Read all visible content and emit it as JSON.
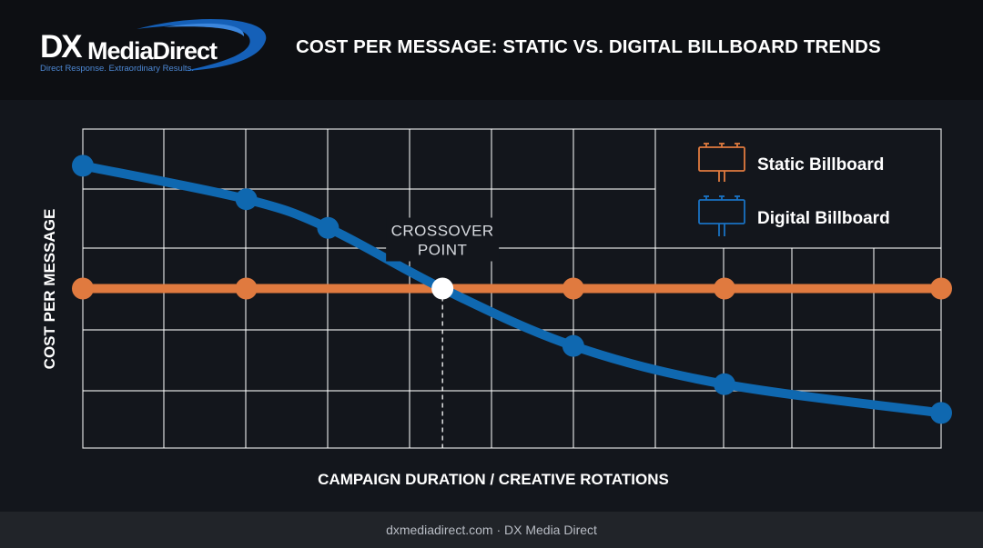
{
  "header": {
    "logo_dx": "DX",
    "logo_name": "MediaDirect",
    "logo_tagline": "Direct Response. Extraordinary Results."
  },
  "colors": {
    "static": "#e07a3f",
    "digital": "#0f68b0",
    "grid": "#ffffff",
    "background": "#13161c"
  },
  "chart_data": {
    "type": "line",
    "title": "COST PER MESSAGE: STATIC VS. DIGITAL BILLBOARD TRENDS",
    "xlabel": "CAMPAIGN DURATION / CREATIVE ROTATIONS",
    "ylabel": "COST PER MESSAGE",
    "xlim": [
      0,
      10.5
    ],
    "ylim": [
      0,
      10
    ],
    "grid": true,
    "ticks_labeled": false,
    "legend_position": "top-right",
    "series": [
      {
        "name": "Static Billboard",
        "color": "#e07a3f",
        "icon": "static-billboard-icon",
        "x": [
          0,
          2,
          6,
          7.85,
          10.5
        ],
        "y": [
          5,
          5,
          5,
          5,
          5
        ]
      },
      {
        "name": "Digital Billboard",
        "color": "#0f68b0",
        "icon": "digital-billboard-icon",
        "x": [
          0,
          2,
          3,
          4.4,
          6,
          7.85,
          10.5
        ],
        "y": [
          8.85,
          7.8,
          6.9,
          5,
          3.2,
          2,
          1.1
        ]
      }
    ],
    "annotations": [
      {
        "text": "CROSSOVER POINT",
        "lines": [
          "CROSSOVER",
          "POINT"
        ],
        "x": 4.4,
        "y": 5
      }
    ]
  },
  "footer": {
    "text": "dxmediadirect.com · DX Media Direct"
  }
}
